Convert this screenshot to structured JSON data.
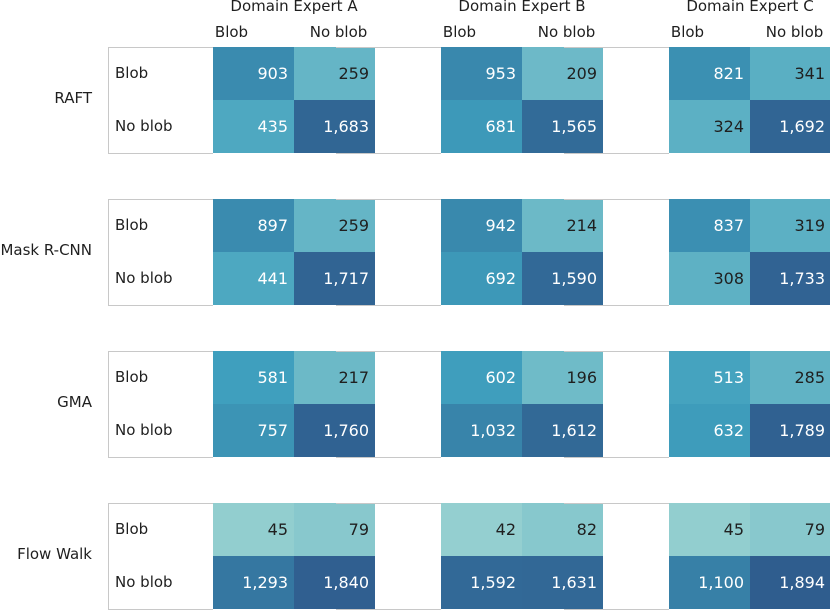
{
  "chart_data": {
    "type": "table",
    "column_groups": [
      "Domain Expert A",
      "Domain Expert B",
      "Domain Expert C"
    ],
    "column_labels": [
      "Blob",
      "No blob"
    ],
    "row_groups": [
      "RAFT",
      "Mask R-CNN",
      "GMA",
      "Flow Walk"
    ],
    "row_labels": [
      "Blob",
      "No blob"
    ],
    "values": [
      [
        [
          [
            903,
            259
          ],
          [
            435,
            1683
          ]
        ],
        [
          [
            953,
            209
          ],
          [
            681,
            1565
          ]
        ],
        [
          [
            821,
            341
          ],
          [
            324,
            1692
          ]
        ]
      ],
      [
        [
          [
            897,
            259
          ],
          [
            441,
            1717
          ]
        ],
        [
          [
            942,
            214
          ],
          [
            692,
            1590
          ]
        ],
        [
          [
            837,
            319
          ],
          [
            308,
            1733
          ]
        ]
      ],
      [
        [
          [
            581,
            217
          ],
          [
            757,
            1760
          ]
        ],
        [
          [
            602,
            196
          ],
          [
            1032,
            1612
          ]
        ],
        [
          [
            513,
            285
          ],
          [
            632,
            1789
          ]
        ]
      ],
      [
        [
          [
            45,
            79
          ],
          [
            1293,
            1840
          ]
        ],
        [
          [
            42,
            82
          ],
          [
            1592,
            1631
          ]
        ],
        [
          [
            45,
            79
          ],
          [
            1100,
            1894
          ]
        ]
      ]
    ],
    "color_scale": {
      "low": "#b3e0d6",
      "mid": "#3fa0be",
      "high": "#2f5d8e"
    }
  }
}
